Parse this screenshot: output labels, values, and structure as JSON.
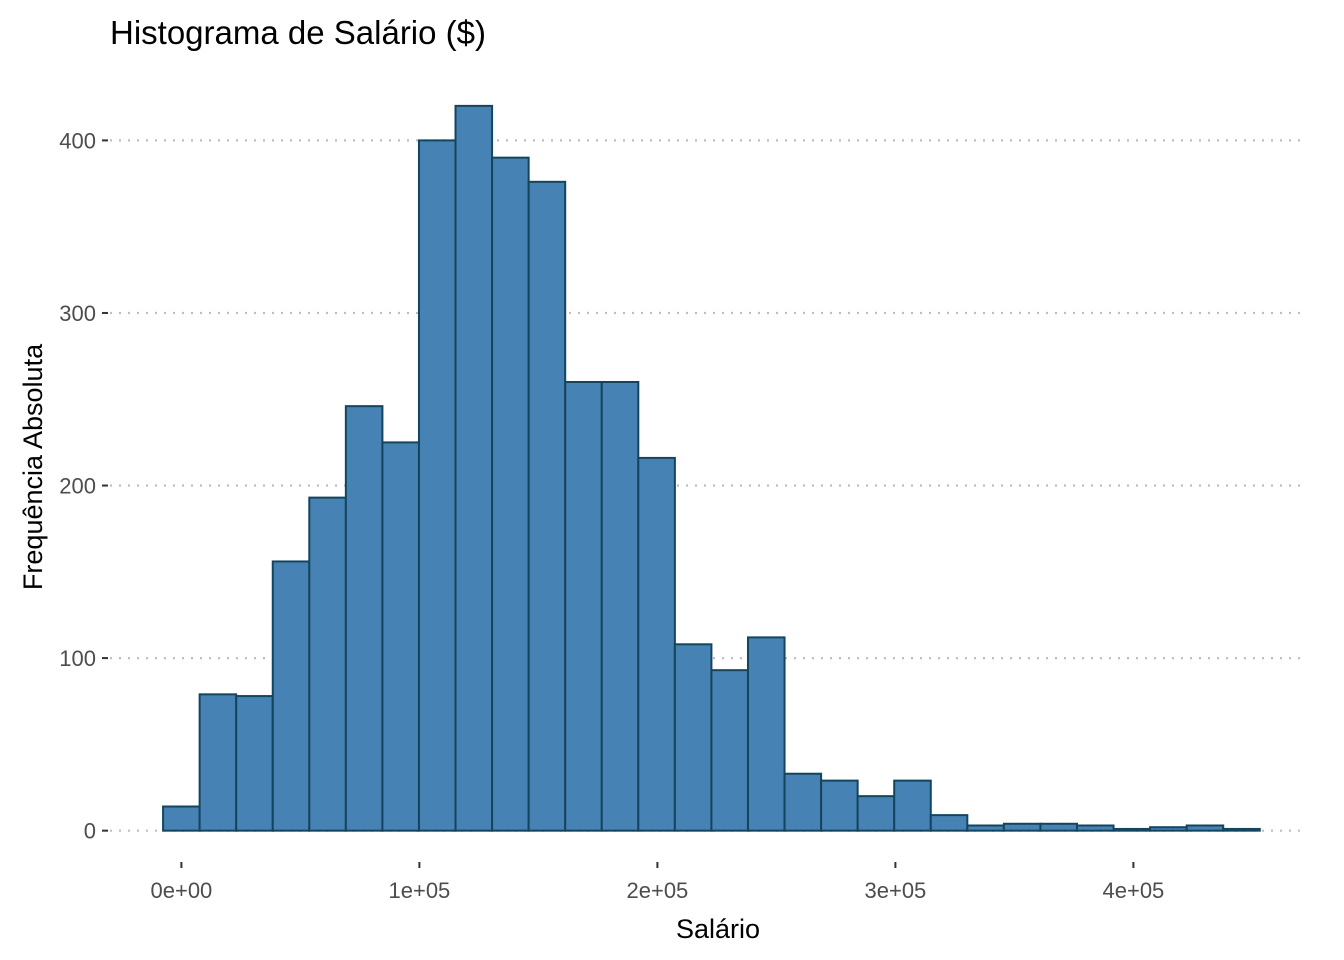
{
  "chart_data": {
    "type": "bar",
    "title": "Histograma de Salário ($)",
    "xlabel": "Salário",
    "ylabel": "Frequência Absoluta",
    "x_ticks": [
      {
        "value": 0,
        "label": "0e+00"
      },
      {
        "value": 100000,
        "label": "1e+05"
      },
      {
        "value": 200000,
        "label": "2e+05"
      },
      {
        "value": 300000,
        "label": "3e+05"
      },
      {
        "value": 400000,
        "label": "4e+05"
      }
    ],
    "y_ticks": [
      {
        "value": 0,
        "label": "0"
      },
      {
        "value": 100,
        "label": "100"
      },
      {
        "value": 200,
        "label": "200"
      },
      {
        "value": 300,
        "label": "300"
      },
      {
        "value": 400,
        "label": "400"
      }
    ],
    "xlim": [
      -30000,
      470000
    ],
    "ylim": [
      -17,
      435
    ],
    "grid": "horizontal dotted",
    "legend": "none",
    "bin_start": -7700,
    "bin_width": 15360,
    "counts": [
      14,
      79,
      78,
      156,
      193,
      246,
      225,
      400,
      420,
      390,
      376,
      260,
      260,
      216,
      108,
      93,
      112,
      33,
      29,
      20,
      29,
      9,
      3,
      4,
      4,
      3,
      1,
      2,
      3,
      1
    ],
    "fill_color": "#4682B4",
    "edge_color": "#14455E",
    "grid_color": "#BEBEBE"
  }
}
